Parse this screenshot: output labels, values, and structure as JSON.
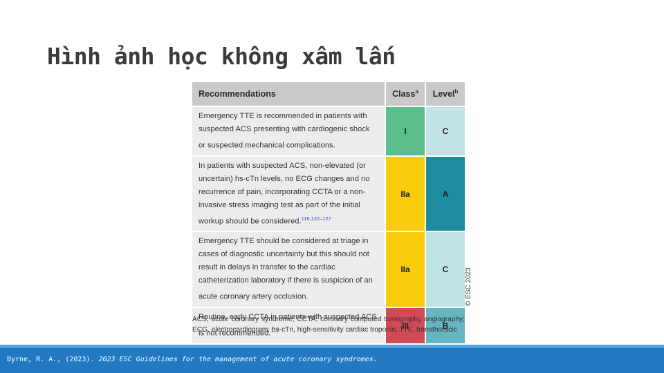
{
  "slide": {
    "title": "Hình ảnh học không xâm lấn"
  },
  "table": {
    "headers": {
      "recommendations": "Recommendations",
      "class": "Class",
      "class_sup": "a",
      "level": "Level",
      "level_sup": "b"
    },
    "rows": [
      {
        "text": "Emergency TTE is recommended in patients with suspected ACS presenting with cardiogenic shock or suspected mechanical complications.",
        "ref": "",
        "class": "I",
        "level": "C",
        "class_color": "#5bbf8c",
        "level_color": "#c1e3e8"
      },
      {
        "text": "In patients with suspected ACS, non-elevated (or uncertain) hs-cTn levels, no ECG changes and no recurrence of pain, incorporating CCTA or a non-invasive stress imaging test as part of the initial workup should be considered.",
        "ref": "116,122–127",
        "class": "IIa",
        "level": "A",
        "class_color": "#f8cc0a",
        "level_color": "#1c8c9e"
      },
      {
        "text": "Emergency TTE should be considered at triage in cases of diagnostic uncertainty but this should not result in delays in transfer to the cardiac catheterization laboratory if there is suspicion of an acute coronary artery occlusion.",
        "ref": "",
        "class": "IIa",
        "level": "C",
        "class_color": "#f8cc0a",
        "level_color": "#c1e3e8"
      },
      {
        "text": "Routine, early CCTA in patients with suspected ACS is not recommended.",
        "ref": "117",
        "class": "III",
        "level": "B",
        "class_color": "#d24a55",
        "level_color": "#66b5c3"
      }
    ],
    "copyright": "© ESC 2023"
  },
  "abbreviations": "ACS, acute coronary syndrome; CCTA, coronary computed tomography angiography; ECG, electrocardiogram; hs-cTn, high-sensitivity cardiac troponin; TTE, transthoracic",
  "footer": {
    "citation_prefix": "Byrne, R. A., (2023). ",
    "citation_title": "2023 ESC Guidelines for the management of acute coronary syndromes.",
    "bar_color": "#2279c2"
  }
}
